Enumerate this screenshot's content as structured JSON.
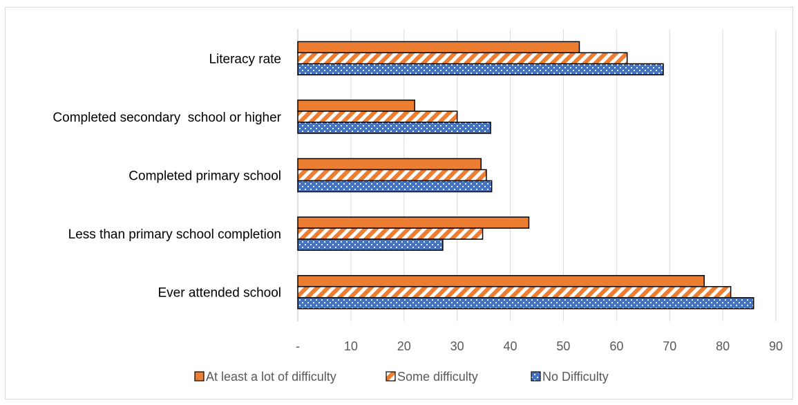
{
  "chart_data": {
    "type": "bar",
    "orientation": "horizontal",
    "categories": [
      "Literacy rate",
      "Completed secondary  school or higher",
      "Completed primary school",
      "Less than primary school completion",
      "Ever attended school"
    ],
    "series": [
      {
        "name": "At least a lot of difficulty",
        "values": [
          53,
          22,
          34.5,
          43.5,
          76.5
        ],
        "color": "#ED7D31",
        "pattern": "solid"
      },
      {
        "name": "Some difficulty",
        "values": [
          62,
          30,
          35.5,
          34.8,
          81.5
        ],
        "color": "#ED7D31",
        "pattern": "diagonal-stripes"
      },
      {
        "name": "No Difficulty",
        "values": [
          68.8,
          36.3,
          36.5,
          27.3,
          85.8
        ],
        "color": "#4472C4",
        "pattern": "dots"
      }
    ],
    "x_ticks": [
      "-",
      "10",
      "20",
      "30",
      "40",
      "50",
      "60",
      "70",
      "80",
      "90"
    ],
    "xlim": [
      0,
      90
    ],
    "grid": true,
    "legend_position": "bottom",
    "title": "",
    "xlabel": "",
    "ylabel": ""
  }
}
